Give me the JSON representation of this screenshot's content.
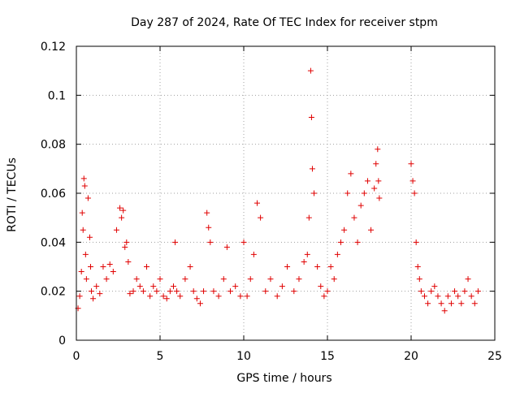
{
  "chart_data": {
    "type": "scatter",
    "title": "Day 287 of 2024, Rate Of TEC Index for receiver stpm",
    "xlabel": "GPS time / hours",
    "ylabel": "ROTI / TECUs",
    "xlim": [
      0,
      25
    ],
    "ylim": [
      0,
      0.12
    ],
    "xticks": [
      "0",
      "5",
      "10",
      "15",
      "20",
      "25"
    ],
    "yticks": [
      "0",
      "0.02",
      "0.04",
      "0.06",
      "0.08",
      "0.1",
      "0.12"
    ],
    "grid": true,
    "marker": "+",
    "color": "#e00000",
    "series": [
      {
        "x": [
          0.1,
          0.2,
          0.3,
          0.35,
          0.4,
          0.45,
          0.5,
          0.55,
          0.6,
          0.7,
          0.8,
          0.85,
          0.9,
          1.0,
          1.2,
          1.4,
          1.6,
          1.8,
          2.0,
          2.2,
          2.4,
          2.6,
          2.7,
          2.8,
          2.9,
          3.0,
          3.1,
          3.2,
          3.4,
          3.6,
          3.8,
          4.0,
          4.2,
          4.4,
          4.6,
          4.8,
          5.0,
          5.2,
          5.4,
          5.6,
          5.8,
          5.9,
          6.0,
          6.2,
          6.5,
          6.8,
          7.0,
          7.2,
          7.4,
          7.6,
          7.8,
          7.9,
          8.0,
          8.2,
          8.5,
          8.8,
          9.0,
          9.2,
          9.5,
          9.8,
          10.0,
          10.2,
          10.4,
          10.6,
          10.8,
          11.0,
          11.3,
          11.6,
          12.0,
          12.3,
          12.6,
          13.0,
          13.3,
          13.6,
          13.8,
          13.9,
          14.0,
          14.05,
          14.1,
          14.2,
          14.4,
          14.6,
          14.8,
          15.0,
          15.2,
          15.4,
          15.6,
          15.8,
          16.0,
          16.2,
          16.4,
          16.6,
          16.8,
          17.0,
          17.2,
          17.4,
          17.6,
          17.8,
          17.9,
          18.0,
          18.05,
          18.1,
          20.0,
          20.1,
          20.2,
          20.3,
          20.4,
          20.5,
          20.6,
          20.8,
          21.0,
          21.2,
          21.4,
          21.6,
          21.8,
          22.0,
          22.2,
          22.4,
          22.6,
          22.8,
          23.0,
          23.2,
          23.4,
          23.6,
          23.8,
          24.0
        ],
        "y": [
          0.013,
          0.018,
          0.028,
          0.052,
          0.045,
          0.066,
          0.063,
          0.035,
          0.025,
          0.058,
          0.042,
          0.03,
          0.02,
          0.017,
          0.022,
          0.019,
          0.03,
          0.025,
          0.031,
          0.028,
          0.045,
          0.054,
          0.05,
          0.053,
          0.038,
          0.04,
          0.032,
          0.019,
          0.02,
          0.025,
          0.022,
          0.02,
          0.03,
          0.018,
          0.022,
          0.02,
          0.025,
          0.018,
          0.017,
          0.02,
          0.022,
          0.04,
          0.02,
          0.018,
          0.025,
          0.03,
          0.02,
          0.017,
          0.015,
          0.02,
          0.052,
          0.046,
          0.04,
          0.02,
          0.018,
          0.025,
          0.038,
          0.02,
          0.022,
          0.018,
          0.04,
          0.018,
          0.025,
          0.035,
          0.056,
          0.05,
          0.02,
          0.025,
          0.018,
          0.022,
          0.03,
          0.02,
          0.025,
          0.032,
          0.035,
          0.05,
          0.11,
          0.091,
          0.07,
          0.06,
          0.03,
          0.022,
          0.018,
          0.02,
          0.03,
          0.025,
          0.035,
          0.04,
          0.045,
          0.06,
          0.068,
          0.05,
          0.04,
          0.055,
          0.06,
          0.065,
          0.045,
          0.062,
          0.072,
          0.078,
          0.065,
          0.058,
          0.072,
          0.065,
          0.06,
          0.04,
          0.03,
          0.025,
          0.02,
          0.018,
          0.015,
          0.02,
          0.022,
          0.018,
          0.015,
          0.012,
          0.018,
          0.015,
          0.02,
          0.018,
          0.015,
          0.02,
          0.025,
          0.018,
          0.015,
          0.02
        ]
      }
    ]
  }
}
